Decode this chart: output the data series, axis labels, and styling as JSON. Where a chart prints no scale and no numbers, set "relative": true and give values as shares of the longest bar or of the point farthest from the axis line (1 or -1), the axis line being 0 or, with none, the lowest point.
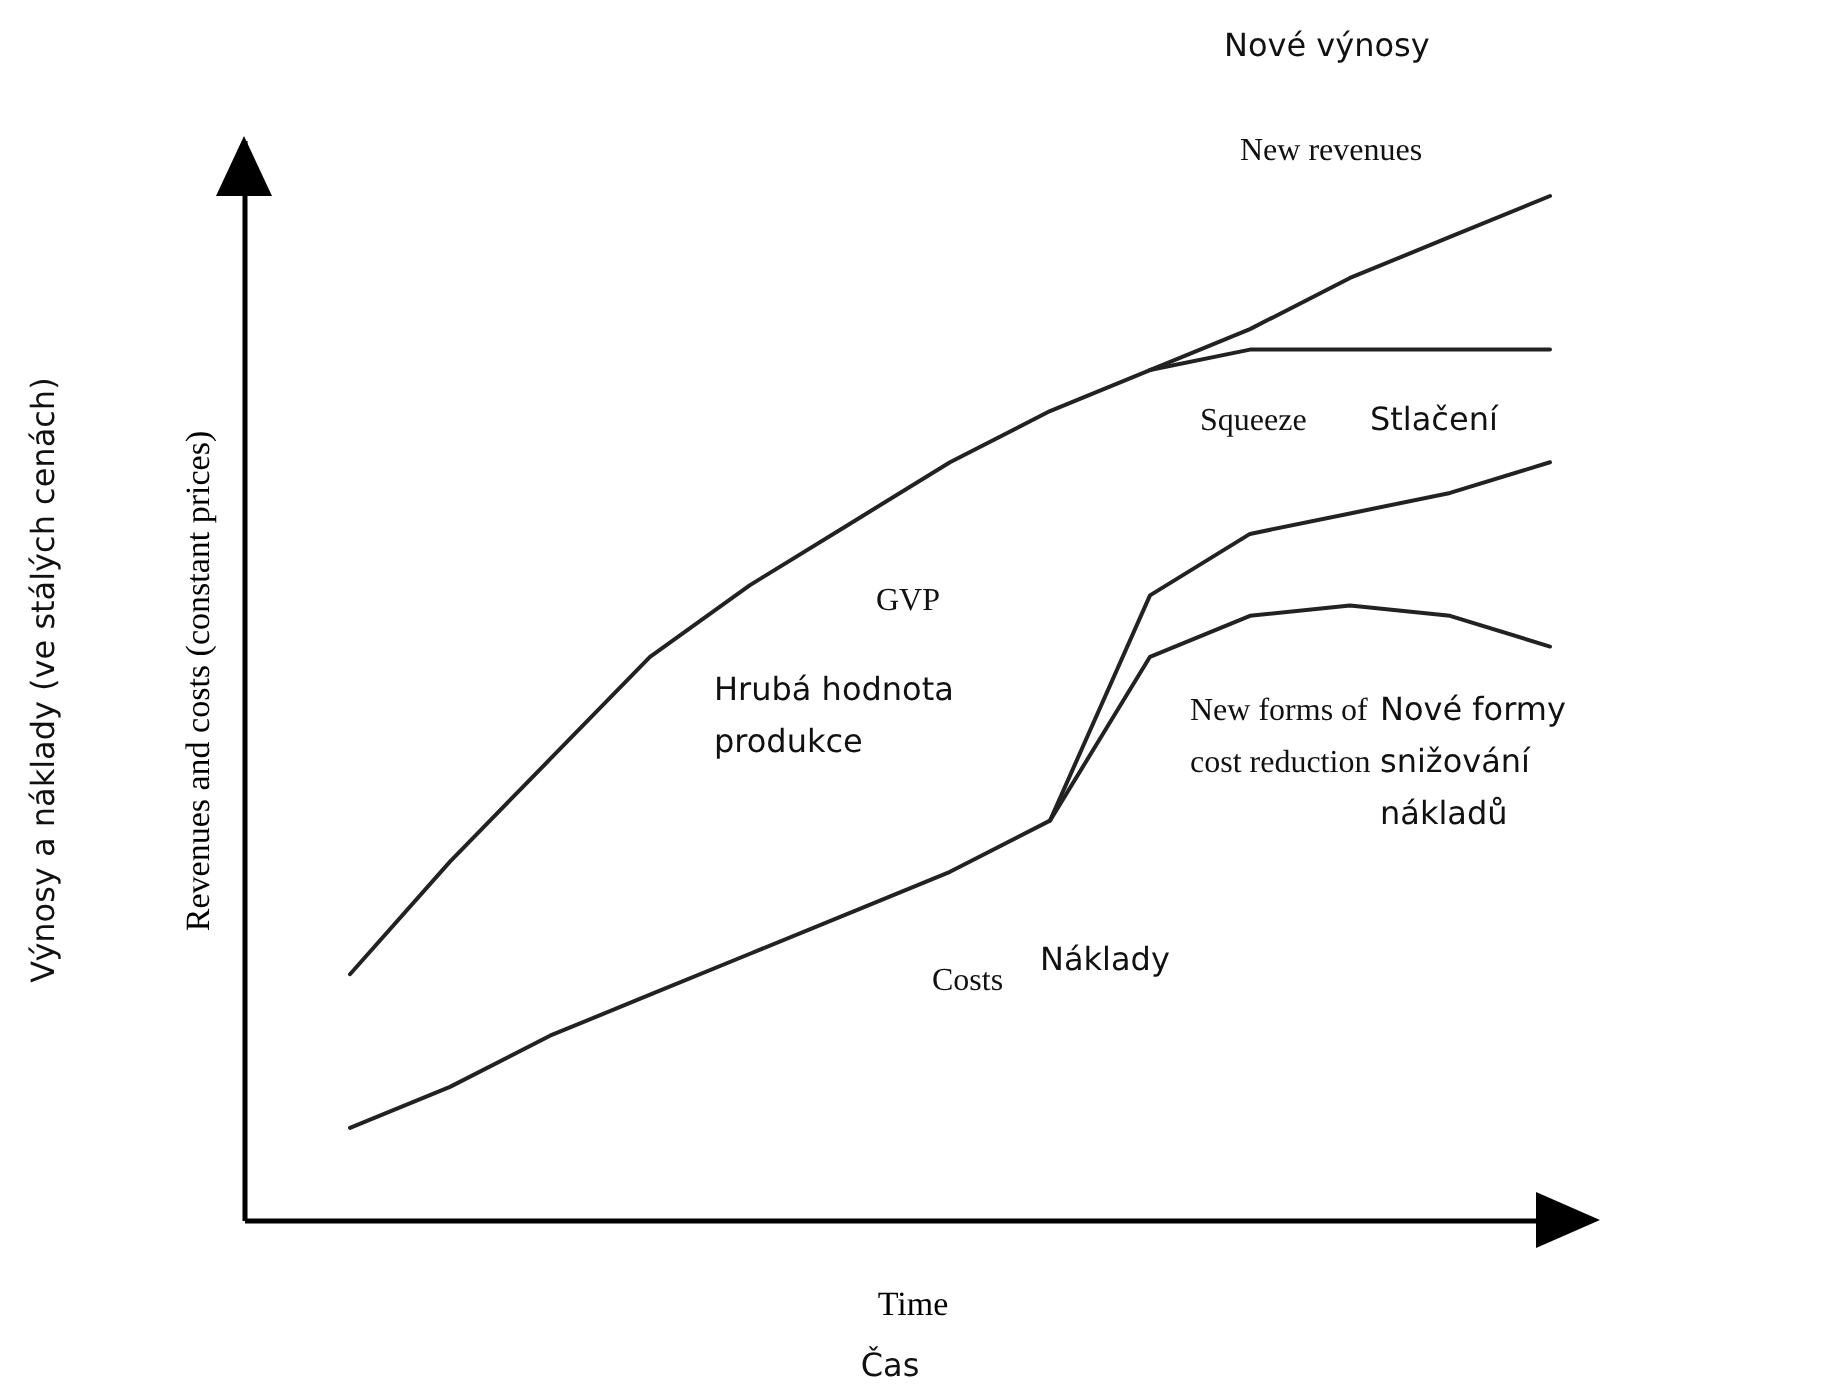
{
  "chart_data": {
    "type": "line",
    "relative": true,
    "xlabel": "Time",
    "ylabel": "Revenues and costs (constant prices)",
    "categories": [
      null,
      null,
      null,
      null,
      null,
      null,
      null,
      null,
      null,
      null,
      null,
      null,
      null
    ],
    "series": [
      {
        "color": "#222222",
        "values": [
          0.24,
          0.35,
          0.45,
          0.55,
          0.62,
          0.68,
          0.74,
          0.79,
          0.83,
          0.87,
          0.92,
          0.96,
          1.0
        ]
      },
      {
        "color": "#222222",
        "values": [
          null,
          null,
          null,
          null,
          null,
          null,
          null,
          null,
          0.83,
          0.85,
          0.85,
          0.85,
          0.85
        ]
      },
      {
        "color": "#222222",
        "values": [
          0.09,
          0.13,
          0.18,
          0.22,
          0.26,
          0.3,
          0.34,
          0.39,
          0.61,
          0.67,
          0.69,
          0.71,
          0.74
        ]
      },
      {
        "color": "#222222",
        "values": [
          null,
          null,
          null,
          null,
          null,
          null,
          null,
          0.39,
          0.55,
          0.59,
          0.6,
          0.59,
          0.56
        ]
      }
    ],
    "annotations": [
      "Nové výnosy",
      "New revenues",
      "Squeeze",
      "Stlačení",
      "GVP",
      "Hrubá hodnota\nprodukce",
      "New forms of\ncost reduction",
      "Nové formy\nsnižování\nnákladů",
      "Costs",
      "Náklady",
      "Čas",
      "Výnosy a náklady (ve stálých cenách)"
    ],
    "grid": false,
    "legend": false,
    "marker": "none",
    "line_style": "solid"
  }
}
